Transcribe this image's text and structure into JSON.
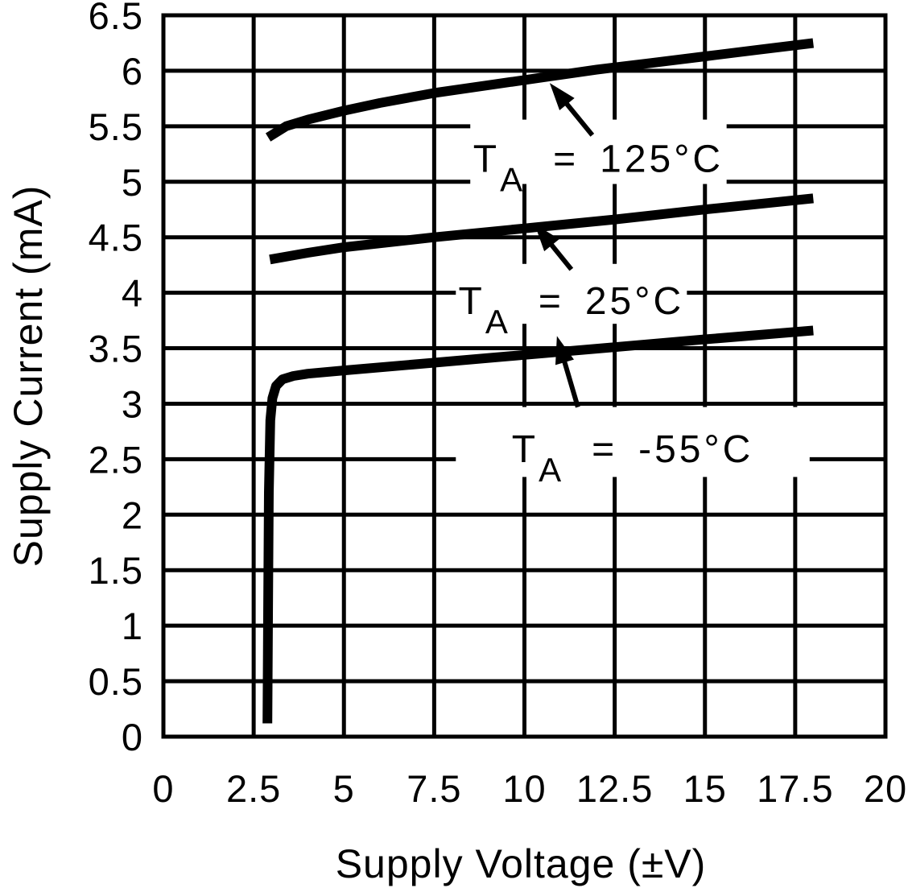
{
  "chart_data": {
    "type": "line",
    "xlabel": "Supply Voltage (±V)",
    "ylabel": "Supply Current (mA)",
    "xlim": [
      0,
      20
    ],
    "xstep": 2.5,
    "ylim": [
      0,
      6.5
    ],
    "ystep": 0.5,
    "x_ticks": [
      "0",
      "2.5",
      "5",
      "7.5",
      "10",
      "12.5",
      "15",
      "17.5",
      "20"
    ],
    "y_ticks": [
      "0",
      "0.5",
      "1",
      "1.5",
      "2",
      "2.5",
      "3",
      "3.5",
      "4",
      "4.5",
      "5",
      "5.5",
      "6",
      "6.5"
    ],
    "grid": true,
    "legend_position": "inline-callouts",
    "series": [
      {
        "id": "ta-125c",
        "name": "TA = 125°C",
        "points": [
          [
            2.9,
            5.4
          ],
          [
            3.4,
            5.5
          ],
          [
            4,
            5.56
          ],
          [
            5,
            5.64
          ],
          [
            6,
            5.71
          ],
          [
            7.5,
            5.8
          ],
          [
            9,
            5.87
          ],
          [
            10.5,
            5.94
          ],
          [
            12,
            6.01
          ],
          [
            13.5,
            6.07
          ],
          [
            15,
            6.13
          ],
          [
            16.5,
            6.19
          ],
          [
            18,
            6.25
          ]
        ]
      },
      {
        "id": "ta-25c",
        "name": "TA = 25°C",
        "points": [
          [
            2.95,
            4.3
          ],
          [
            4,
            4.36
          ],
          [
            5,
            4.41
          ],
          [
            7.5,
            4.5
          ],
          [
            10,
            4.58
          ],
          [
            12.5,
            4.66
          ],
          [
            15,
            4.75
          ],
          [
            18,
            4.85
          ]
        ]
      },
      {
        "id": "ta--55c",
        "name": "TA = -55°C",
        "points": [
          [
            2.88,
            0.12
          ],
          [
            2.9,
            1.2
          ],
          [
            2.92,
            2.2
          ],
          [
            2.96,
            2.85
          ],
          [
            3.02,
            3.05
          ],
          [
            3.12,
            3.16
          ],
          [
            3.3,
            3.22
          ],
          [
            3.6,
            3.25
          ],
          [
            4,
            3.27
          ],
          [
            5,
            3.3
          ],
          [
            7.5,
            3.37
          ],
          [
            10,
            3.44
          ],
          [
            12.5,
            3.51
          ],
          [
            15,
            3.58
          ],
          [
            18,
            3.66
          ]
        ]
      }
    ],
    "annotations": [
      {
        "id": "ta-125c",
        "pre": "T",
        "sub": "A",
        "eq": "=",
        "value": "125°C",
        "box": {
          "v0": 8.5,
          "v1": 15.6,
          "i0": 4.98,
          "i1": 5.56
        },
        "arrow": {
          "tail": [
            11.88,
            5.42
          ],
          "tip": [
            10.7,
            5.89
          ]
        }
      },
      {
        "id": "ta-25c",
        "pre": "T",
        "sub": "A",
        "eq": "=",
        "value": "25°C",
        "box": {
          "v0": 8.1,
          "v1": 14.5,
          "i0": 3.72,
          "i1": 4.26
        },
        "arrow": {
          "tail": [
            11.3,
            4.21
          ],
          "tip": [
            10.28,
            4.62
          ]
        }
      },
      {
        "id": "ta--55c",
        "pre": "T",
        "sub": "A",
        "eq": "=",
        "value": "-55°C",
        "box": {
          "v0": 8.1,
          "v1": 17.9,
          "i0": 2.34,
          "i1": 2.97
        },
        "arrow": {
          "tail": [
            11.48,
            2.97
          ],
          "tip": [
            10.9,
            3.61
          ]
        }
      }
    ]
  },
  "colors": {
    "ink": "#000000",
    "background": "#ffffff"
  }
}
